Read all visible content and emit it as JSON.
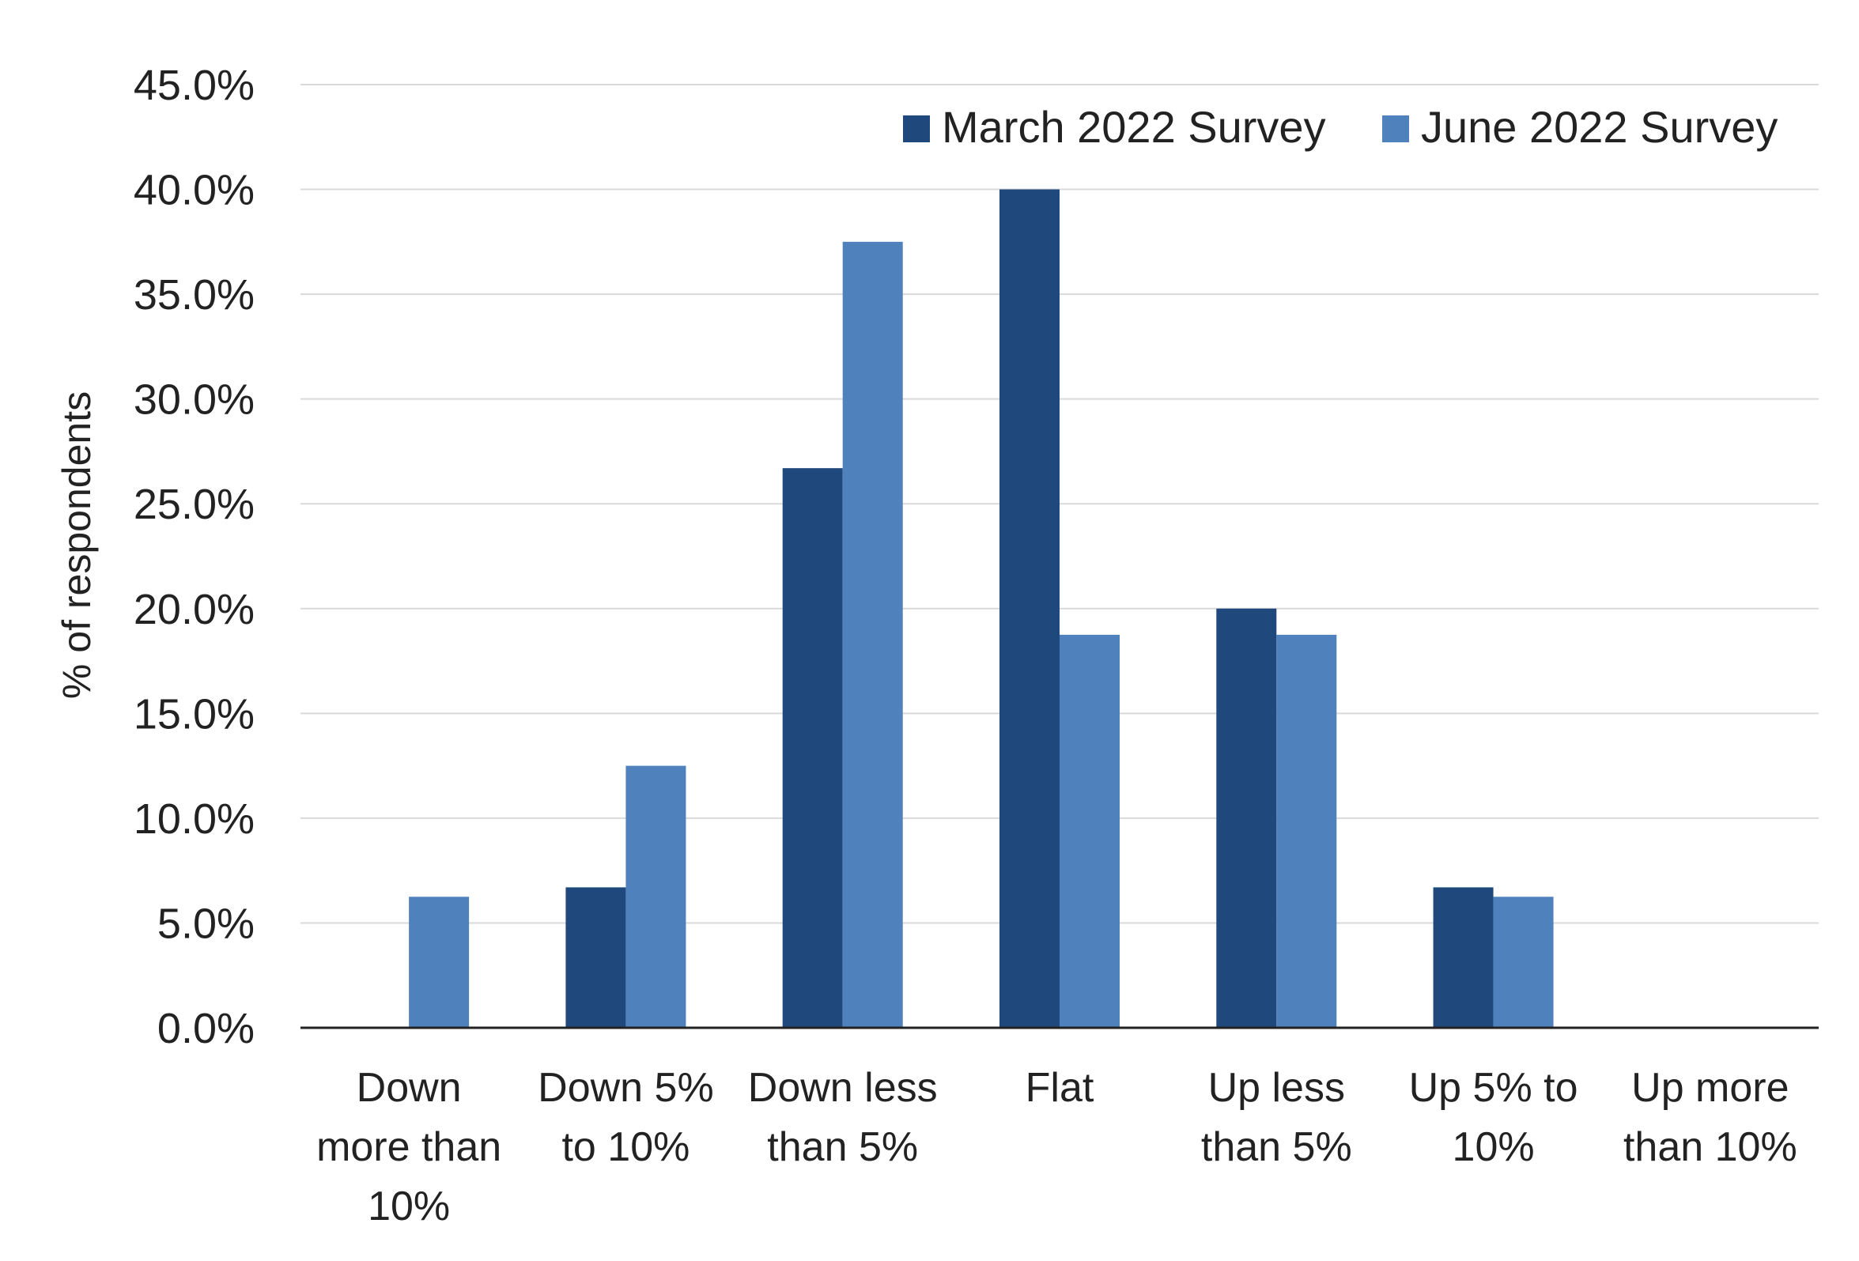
{
  "colors": {
    "series_march": "#1f497d",
    "series_june": "#4f81bd",
    "gridline": "#d9d9d9",
    "axis": "#222222",
    "text": "#222222"
  },
  "chart_data": {
    "type": "bar",
    "title": "",
    "xlabel": "",
    "ylabel": "% of respondents",
    "ylim": [
      0,
      45
    ],
    "yticks": [
      "0.0%",
      "5.0%",
      "10.0%",
      "15.0%",
      "20.0%",
      "25.0%",
      "30.0%",
      "35.0%",
      "40.0%",
      "45.0%"
    ],
    "grid": true,
    "legend_position": "top-right",
    "categories": [
      [
        "Down",
        "more than",
        "10%"
      ],
      [
        "Down 5%",
        "to 10%"
      ],
      [
        "Down less",
        "than 5%"
      ],
      [
        "Flat"
      ],
      [
        "Up less",
        "than 5%"
      ],
      [
        "Up 5% to",
        "10%"
      ],
      [
        "Up more",
        "than 10%"
      ]
    ],
    "series": [
      {
        "name": "March 2022 Survey",
        "color": "#1f497d",
        "values": [
          0,
          6.7,
          26.7,
          40.0,
          20.0,
          6.7,
          0
        ]
      },
      {
        "name": "June 2022 Survey",
        "color": "#4f81bd",
        "values": [
          6.25,
          12.5,
          37.5,
          18.75,
          18.75,
          6.25,
          0
        ]
      }
    ]
  }
}
